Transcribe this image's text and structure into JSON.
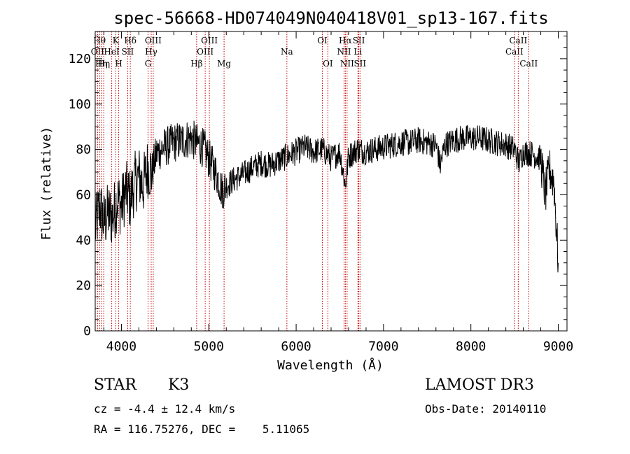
{
  "chart_data": {
    "type": "line",
    "title": "spec-56668-HD074049N040418V01_sp13-167.fits",
    "xlabel": "Wavelength (Å)",
    "ylabel": "Flux (relative)",
    "xlim": [
      3700,
      9100
    ],
    "ylim": [
      0,
      132
    ],
    "xticks": [
      4000,
      5000,
      6000,
      7000,
      8000,
      9000
    ],
    "yticks": [
      0,
      20,
      40,
      60,
      80,
      100,
      120
    ],
    "series": [
      {
        "name": "spectrum",
        "x": [
          3700,
          3750,
          3800,
          3850,
          3900,
          3950,
          4000,
          4050,
          4100,
          4150,
          4200,
          4250,
          4300,
          4350,
          4400,
          4450,
          4500,
          4600,
          4700,
          4800,
          4850,
          4900,
          4950,
          5000,
          5100,
          5150,
          5200,
          5300,
          5400,
          5500,
          5600,
          5700,
          5800,
          5900,
          6000,
          6100,
          6200,
          6300,
          6400,
          6500,
          6563,
          6600,
          6700,
          6800,
          6900,
          7000,
          7100,
          7200,
          7300,
          7400,
          7500,
          7600,
          7650,
          7700,
          7800,
          7900,
          8000,
          8100,
          8200,
          8300,
          8400,
          8500,
          8550,
          8600,
          8700,
          8800,
          8850,
          8900,
          8950,
          9000
        ],
        "values": [
          45,
          55,
          48,
          52,
          50,
          58,
          55,
          62,
          58,
          65,
          68,
          64,
          72,
          70,
          78,
          80,
          81,
          83,
          84,
          85,
          83,
          82,
          80,
          76,
          68,
          62,
          64,
          67,
          69,
          72,
          74,
          73,
          75,
          77,
          79,
          81,
          79,
          80,
          76,
          79,
          64,
          77,
          80,
          79,
          80,
          81,
          82,
          83,
          83,
          84,
          83,
          82,
          73,
          82,
          84,
          85,
          85,
          85,
          84,
          83,
          82,
          80,
          74,
          79,
          78,
          76,
          60,
          71,
          66,
          30
        ]
      }
    ],
    "line_markers": [
      {
        "wavelength": 3727,
        "label": "OII",
        "row": 2
      },
      {
        "wavelength": 3750,
        "label": "Hθ",
        "row": 1
      },
      {
        "wavelength": 3771,
        "label": "Hη",
        "row": 3
      },
      {
        "wavelength": 3798,
        "label": "Hη",
        "row": 3
      },
      {
        "wavelength": 3889,
        "label": "HeI",
        "row": 2
      },
      {
        "wavelength": 3934,
        "label": "K",
        "row": 1
      },
      {
        "wavelength": 3969,
        "label": "H",
        "row": 3
      },
      {
        "wavelength": 4072,
        "label": "SII",
        "row": 2
      },
      {
        "wavelength": 4102,
        "label": "Hδ",
        "row": 1
      },
      {
        "wavelength": 4305,
        "label": "G",
        "row": 3
      },
      {
        "wavelength": 4341,
        "label": "Hγ",
        "row": 2
      },
      {
        "wavelength": 4364,
        "label": "OIII",
        "row": 1
      },
      {
        "wavelength": 4861,
        "label": "Hβ",
        "row": 3
      },
      {
        "wavelength": 4959,
        "label": "OIII",
        "row": 2
      },
      {
        "wavelength": 5007,
        "label": "OIII",
        "row": 1
      },
      {
        "wavelength": 5175,
        "label": "Mg",
        "row": 3
      },
      {
        "wavelength": 5894,
        "label": "Na",
        "row": 2
      },
      {
        "wavelength": 6300,
        "label": "OI",
        "row": 1
      },
      {
        "wavelength": 6363,
        "label": "OI",
        "row": 3
      },
      {
        "wavelength": 6548,
        "label": "NII",
        "row": 2
      },
      {
        "wavelength": 6563,
        "label": "Hα",
        "row": 1
      },
      {
        "wavelength": 6583,
        "label": "NII",
        "row": 3
      },
      {
        "wavelength": 6707,
        "label": "Li",
        "row": 2
      },
      {
        "wavelength": 6717,
        "label": "SII",
        "row": 1
      },
      {
        "wavelength": 6731,
        "label": "SII",
        "row": 3
      },
      {
        "wavelength": 8498,
        "label": "CaII",
        "row": 2
      },
      {
        "wavelength": 8542,
        "label": "CaII",
        "row": 1
      },
      {
        "wavelength": 8662,
        "label": "CaII",
        "row": 3
      }
    ]
  },
  "info": {
    "object_class": "STAR",
    "subclass": "K3",
    "redshift": "cz = -4.4 ± 12.4 km/s",
    "coords": "RA = 116.75276, DEC =    5.11065",
    "survey": "LAMOST DR3",
    "obs_date": "Obs-Date: 20140110"
  }
}
